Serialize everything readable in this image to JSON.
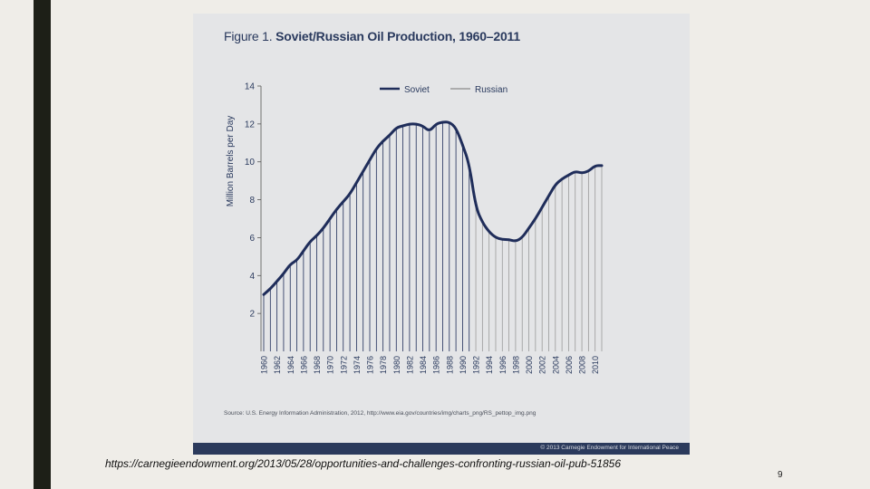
{
  "figure": {
    "title_prefix": "Figure 1.",
    "title": "Soviet/Russian Oil Production, 1960–2011",
    "source": "Source: U.S. Energy Information Administration, 2012, http://www.eia.gov/countries/img/charts_png/RS_pettop_img.png",
    "copyright": "© 2013 Carnegie Endowment for International Peace"
  },
  "url": "https://carnegieendowment.org/2013/05/28/opportunities-and-challenges-confronting-russian-oil-pub-51856",
  "page_number": "9",
  "colors": {
    "soviet": "#1f2d5a",
    "russian": "#9a9a9a",
    "axis": "#555555"
  },
  "chart_data": {
    "type": "area",
    "title": "Soviet/Russian Oil Production, 1960–2011",
    "xlabel": "",
    "ylabel": "Million Barrels per Day",
    "ylim": [
      0,
      14
    ],
    "yticks": [
      2,
      4,
      6,
      8,
      10,
      12,
      14
    ],
    "xlim": [
      1960,
      2011
    ],
    "xticks": [
      1960,
      1962,
      1964,
      1966,
      1968,
      1970,
      1972,
      1974,
      1976,
      1978,
      1980,
      1982,
      1984,
      1986,
      1988,
      1990,
      1992,
      1994,
      1996,
      1998,
      2000,
      2002,
      2004,
      2006,
      2008,
      2010
    ],
    "legend": {
      "position": "top",
      "entries": [
        "Soviet",
        "Russian"
      ]
    },
    "series": [
      {
        "name": "Soviet",
        "x": [
          1960,
          1961,
          1962,
          1963,
          1964,
          1965,
          1966,
          1967,
          1968,
          1969,
          1970,
          1971,
          1972,
          1973,
          1974,
          1975,
          1976,
          1977,
          1978,
          1979,
          1980,
          1981,
          1982,
          1983,
          1984,
          1985,
          1986,
          1987,
          1988,
          1989,
          1990,
          1991
        ],
        "values": [
          3.0,
          3.3,
          3.7,
          4.1,
          4.6,
          4.8,
          5.3,
          5.8,
          6.1,
          6.5,
          7.0,
          7.5,
          7.9,
          8.3,
          8.9,
          9.5,
          10.1,
          10.7,
          11.1,
          11.4,
          11.8,
          11.9,
          12.0,
          12.0,
          11.9,
          11.6,
          12.0,
          12.1,
          12.1,
          11.8,
          10.9,
          9.9
        ]
      },
      {
        "name": "Russian",
        "x": [
          1992,
          1993,
          1994,
          1995,
          1996,
          1997,
          1998,
          1999,
          2000,
          2001,
          2002,
          2003,
          2004,
          2005,
          2006,
          2007,
          2008,
          2009,
          2010,
          2011
        ],
        "values": [
          7.6,
          6.8,
          6.3,
          6.0,
          5.9,
          5.9,
          5.8,
          6.0,
          6.5,
          7.0,
          7.6,
          8.2,
          8.8,
          9.1,
          9.3,
          9.5,
          9.4,
          9.5,
          9.8,
          9.8
        ]
      }
    ]
  }
}
